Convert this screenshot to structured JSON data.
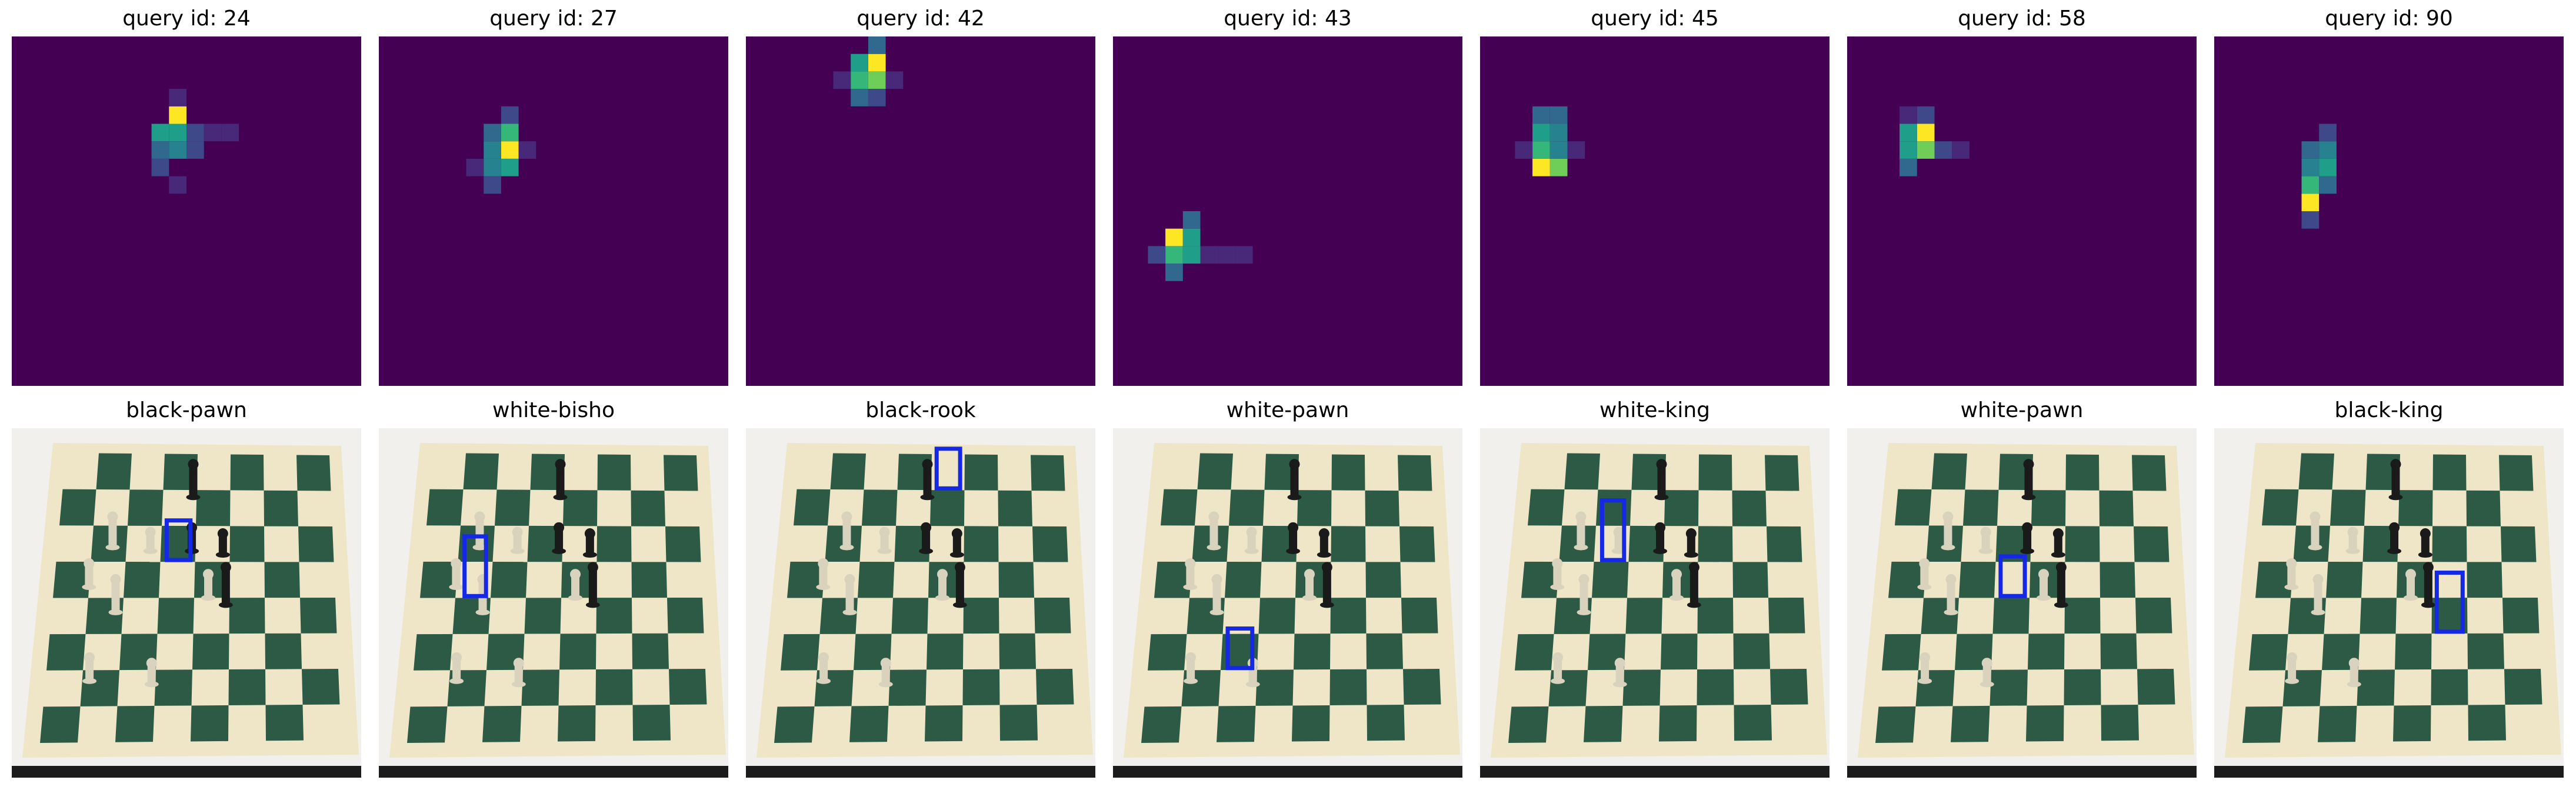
{
  "colors": {
    "heat_bg": "#440154",
    "viridis": [
      "#440154",
      "#482878",
      "#3e4989",
      "#31688e",
      "#26828e",
      "#1f9e89",
      "#35b779",
      "#6ece58",
      "#b5de2b",
      "#fde725"
    ],
    "box": "#1428e6",
    "board_dark": "#2c5a45",
    "board_light": "#efe6c8",
    "paper": "#f1f0ec"
  },
  "panels": [
    {
      "query_title": "query id: 24",
      "label": "black-pawn",
      "hot": [
        [
          9,
          4,
          9
        ],
        [
          9,
          5,
          5
        ],
        [
          8,
          5,
          5
        ],
        [
          9,
          6,
          4
        ],
        [
          8,
          6,
          3
        ],
        [
          8,
          7,
          2
        ],
        [
          10,
          5,
          2
        ],
        [
          10,
          6,
          2
        ],
        [
          11,
          5,
          1
        ],
        [
          12,
          5,
          1
        ],
        [
          9,
          8,
          1
        ],
        [
          9,
          3,
          1
        ]
      ],
      "box_cell": [
        3,
        2,
        1
      ]
    },
    {
      "query_title": "query id: 27",
      "label": "white-bisho",
      "hot": [
        [
          7,
          6,
          9
        ],
        [
          7,
          5,
          6
        ],
        [
          7,
          7,
          5
        ],
        [
          6,
          6,
          4
        ],
        [
          6,
          7,
          4
        ],
        [
          6,
          5,
          3
        ],
        [
          6,
          8,
          2
        ],
        [
          7,
          4,
          2
        ],
        [
          5,
          7,
          1
        ],
        [
          8,
          6,
          1
        ]
      ],
      "box_cell": [
        1,
        3,
        2
      ]
    },
    {
      "query_title": "query id: 42",
      "label": "black-rook",
      "hot": [
        [
          7,
          1,
          9
        ],
        [
          7,
          2,
          7
        ],
        [
          6,
          2,
          6
        ],
        [
          6,
          1,
          5
        ],
        [
          6,
          3,
          3
        ],
        [
          7,
          0,
          3
        ],
        [
          7,
          3,
          2
        ],
        [
          5,
          2,
          1
        ],
        [
          8,
          2,
          1
        ]
      ],
      "box_cell": [
        4,
        0,
        1
      ]
    },
    {
      "query_title": "query id: 43",
      "label": "white-pawn",
      "hot": [
        [
          3,
          11,
          9
        ],
        [
          3,
          12,
          6
        ],
        [
          4,
          11,
          5
        ],
        [
          4,
          12,
          5
        ],
        [
          3,
          13,
          3
        ],
        [
          2,
          12,
          2
        ],
        [
          4,
          10,
          3
        ],
        [
          5,
          12,
          1
        ],
        [
          6,
          12,
          1
        ],
        [
          7,
          12,
          1
        ]
      ],
      "box_cell": [
        2,
        5,
        1
      ]
    },
    {
      "query_title": "query id: 45",
      "label": "white-king",
      "hot": [
        [
          3,
          7,
          9
        ],
        [
          4,
          7,
          7
        ],
        [
          3,
          6,
          6
        ],
        [
          3,
          5,
          5
        ],
        [
          4,
          6,
          4
        ],
        [
          4,
          5,
          4
        ],
        [
          3,
          4,
          3
        ],
        [
          4,
          4,
          3
        ],
        [
          2,
          6,
          1
        ],
        [
          5,
          6,
          1
        ]
      ],
      "box_cell": [
        2,
        2,
        2
      ]
    },
    {
      "query_title": "query id: 58",
      "label": "white-pawn",
      "hot": [
        [
          4,
          5,
          9
        ],
        [
          4,
          6,
          7
        ],
        [
          3,
          5,
          5
        ],
        [
          3,
          6,
          5
        ],
        [
          3,
          7,
          3
        ],
        [
          4,
          4,
          2
        ],
        [
          5,
          6,
          2
        ],
        [
          3,
          4,
          1
        ],
        [
          6,
          6,
          1
        ]
      ],
      "box_cell": [
        3,
        3,
        1
      ]
    },
    {
      "query_title": "query id: 90",
      "label": "black-king",
      "hot": [
        [
          5,
          9,
          9
        ],
        [
          5,
          8,
          6
        ],
        [
          6,
          7,
          5
        ],
        [
          5,
          7,
          4
        ],
        [
          6,
          6,
          4
        ],
        [
          5,
          6,
          3
        ],
        [
          6,
          8,
          3
        ],
        [
          6,
          5,
          2
        ],
        [
          5,
          10,
          2
        ]
      ],
      "box_cell": [
        5,
        4,
        2
      ]
    }
  ]
}
